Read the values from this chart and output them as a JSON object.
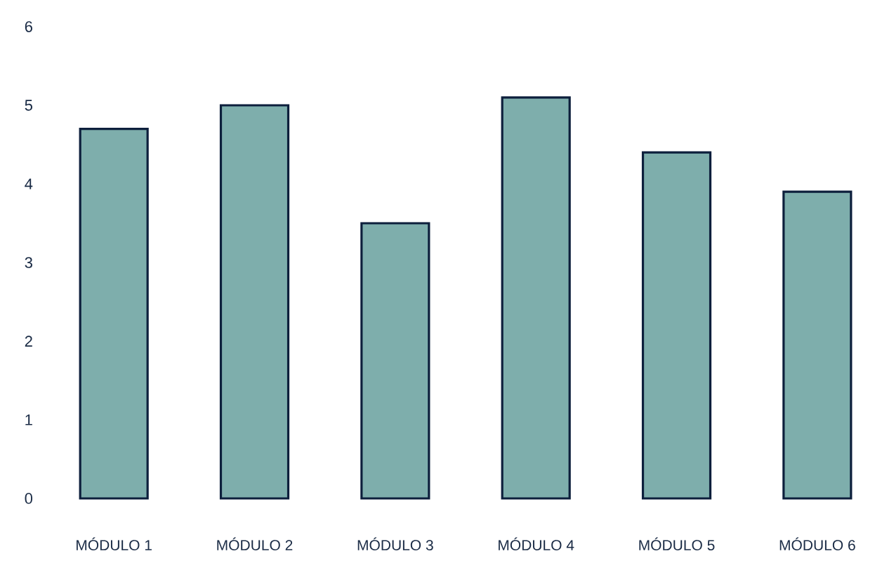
{
  "chart_data": {
    "type": "bar",
    "categories": [
      "MÓDULO 1",
      "MÓDULO 2",
      "MÓDULO 3",
      "MÓDULO 4",
      "MÓDULO 5",
      "MÓDULO 6"
    ],
    "values": [
      4.7,
      5.0,
      3.5,
      5.1,
      4.4,
      3.9
    ],
    "color": "#7eaeac",
    "ylim": [
      0,
      6
    ],
    "yticks": [
      0,
      1,
      2,
      3,
      4,
      5,
      6
    ]
  }
}
